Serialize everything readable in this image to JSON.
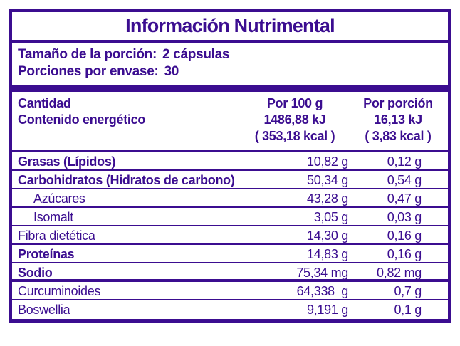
{
  "theme": {
    "accent": "#3B0D90",
    "background": "#FFFFFF"
  },
  "title": "Información Nutrimental",
  "serving_info": {
    "size_label": "Tamaño de la porción:",
    "size_value": "2 cápsulas",
    "per_package_label": "Porciones por envase:",
    "per_package_value": "30"
  },
  "table_header": {
    "amount_label": "Cantidad",
    "energy_label": "Contenido energético",
    "per_100g": {
      "heading": "Por 100 g",
      "kj": "1486,88 kJ",
      "kcal": "( 353,18 kcal )"
    },
    "per_serving": {
      "heading": "Por porción",
      "kj": "16,13 kJ",
      "kcal": "( 3,83 kcal )"
    }
  },
  "rows": [
    {
      "label": "Grasas (Lípidos)",
      "per_100g": "10,82 g",
      "per_serving": "0,12 g",
      "bold": true,
      "indent": false,
      "group_end": false
    },
    {
      "label": "Carbohidratos (Hidratos de carbono)",
      "per_100g": "50,34 g",
      "per_serving": "0,54 g",
      "bold": true,
      "indent": false,
      "group_end": false
    },
    {
      "label": "Azúcares",
      "per_100g": "43,28 g",
      "per_serving": "0,47 g",
      "bold": false,
      "indent": true,
      "group_end": false
    },
    {
      "label": "Isomalt",
      "per_100g": "3,05 g",
      "per_serving": "0,03 g",
      "bold": false,
      "indent": true,
      "group_end": false
    },
    {
      "label": "Fibra dietética",
      "per_100g": "14,30 g",
      "per_serving": "0,16 g",
      "bold": false,
      "indent": false,
      "group_end": false
    },
    {
      "label": "Proteínas",
      "per_100g": "14,83 g",
      "per_serving": "0,16 g",
      "bold": true,
      "indent": false,
      "group_end": false
    },
    {
      "label": "Sodio",
      "per_100g": "75,34 mg",
      "per_serving": "0,82 mg",
      "bold": true,
      "indent": false,
      "group_end": true
    },
    {
      "label": "Curcuminoides",
      "per_100g": "64,338  g",
      "per_serving": "0,7 g",
      "bold": false,
      "indent": false,
      "group_end": false
    },
    {
      "label": "Boswellia",
      "per_100g": "9,191 g",
      "per_serving": "0,1 g",
      "bold": false,
      "indent": false,
      "group_end": false
    }
  ]
}
